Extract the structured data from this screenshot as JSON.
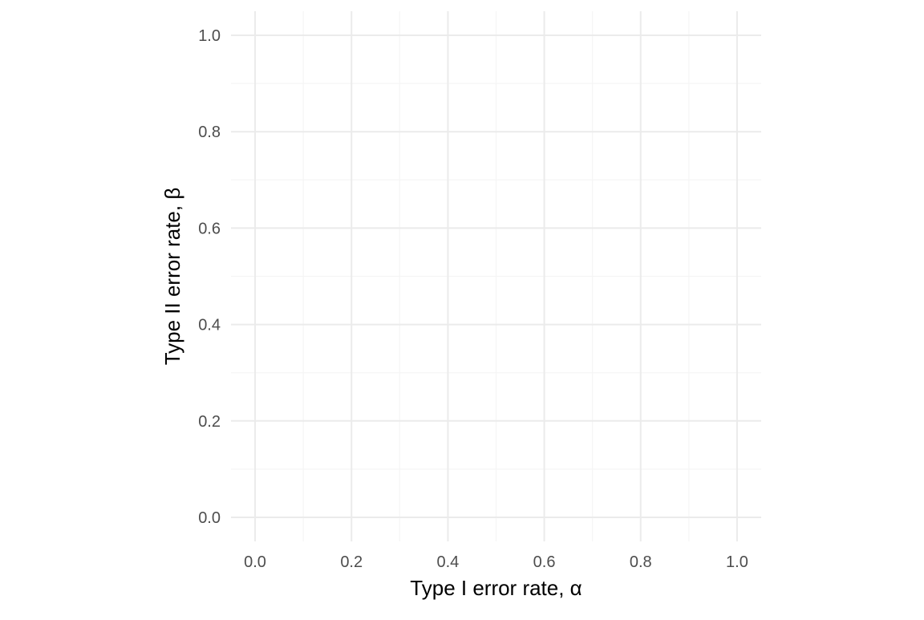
{
  "chart_data": {
    "type": "scatter",
    "title": "",
    "xlabel": "Type I error rate, α",
    "ylabel": "Type II error rate, β",
    "xlim": [
      -0.05,
      1.05
    ],
    "ylim": [
      -0.05,
      1.05
    ],
    "x_ticks": [
      0.0,
      0.2,
      0.4,
      0.6,
      0.8,
      1.0
    ],
    "y_ticks": [
      0.0,
      0.2,
      0.4,
      0.6,
      0.8,
      1.0
    ],
    "x_tick_labels": [
      "0.0",
      "0.2",
      "0.4",
      "0.6",
      "0.8",
      "1.0"
    ],
    "y_tick_labels": [
      "0.0",
      "0.2",
      "0.4",
      "0.6",
      "0.8",
      "1.0"
    ],
    "x_minor_ticks": [
      0.1,
      0.3,
      0.5,
      0.7,
      0.9
    ],
    "y_minor_ticks": [
      0.1,
      0.3,
      0.5,
      0.7,
      0.9
    ],
    "grid": true,
    "series": [],
    "colors": {
      "grid_major": "#ebebeb",
      "grid_minor": "#f5f5f5",
      "tick_text": "#4d4d4d",
      "axis_title": "#000000"
    }
  }
}
